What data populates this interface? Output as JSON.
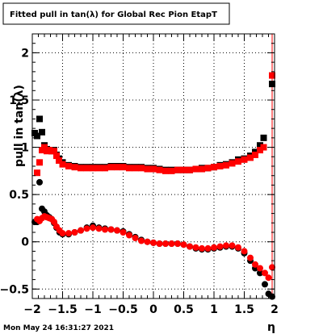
{
  "title": "Fitted pull in tan(λ) for Global Rec Pion EtapT",
  "timestamp": "Mon May 24 16:31:27 2021",
  "chart_data": {
    "type": "scatter",
    "title": "Fitted pull in tan(λ) for Global Rec Pion EtapT",
    "xlabel": "η",
    "ylabel": "pull in tan(λ)",
    "xlim": [
      -2,
      2
    ],
    "ylim": [
      -0.6,
      2.2
    ],
    "grid": true,
    "x_ticks": [
      -2,
      -1.5,
      -1,
      -0.5,
      0,
      0.5,
      1,
      1.5,
      2
    ],
    "x_tick_labels": [
      "−2",
      "−1.5",
      "−1",
      "−0.5",
      "0",
      "0.5",
      "1",
      "1.5",
      "2"
    ],
    "y_ticks": [
      -0.5,
      0,
      0.5,
      1,
      1.5,
      2
    ],
    "y_tick_labels": [
      "−0.5",
      "0",
      "0.5",
      "1",
      "1.5",
      "2"
    ],
    "colors": {
      "black": "#000000",
      "red": "#ff0000"
    },
    "series": [
      {
        "marker": "square",
        "color": "#000000",
        "points": [
          [
            -1.96,
            1.15
          ],
          [
            -1.92,
            1.12
          ],
          [
            -1.88,
            1.3
          ],
          [
            -1.84,
            1.16
          ],
          [
            -1.8,
            1.02
          ],
          [
            -1.76,
            0.98
          ],
          [
            -1.72,
            0.97
          ],
          [
            -1.68,
            0.96
          ],
          [
            -1.64,
            0.97
          ],
          [
            -1.6,
            0.92
          ],
          [
            -1.56,
            0.88
          ],
          [
            -1.5,
            0.84
          ],
          [
            -1.4,
            0.81
          ],
          [
            -1.3,
            0.8
          ],
          [
            -1.2,
            0.79
          ],
          [
            -1.1,
            0.79
          ],
          [
            -1.0,
            0.79
          ],
          [
            -0.9,
            0.79
          ],
          [
            -0.8,
            0.79
          ],
          [
            -0.7,
            0.8
          ],
          [
            -0.6,
            0.8
          ],
          [
            -0.5,
            0.8
          ],
          [
            -0.4,
            0.79
          ],
          [
            -0.3,
            0.79
          ],
          [
            -0.2,
            0.79
          ],
          [
            -0.1,
            0.78
          ],
          [
            0.0,
            0.78
          ],
          [
            0.1,
            0.77
          ],
          [
            0.2,
            0.76
          ],
          [
            0.3,
            0.76
          ],
          [
            0.4,
            0.76
          ],
          [
            0.5,
            0.76
          ],
          [
            0.6,
            0.76
          ],
          [
            0.7,
            0.77
          ],
          [
            0.8,
            0.78
          ],
          [
            0.9,
            0.78
          ],
          [
            1.0,
            0.79
          ],
          [
            1.1,
            0.81
          ],
          [
            1.2,
            0.82
          ],
          [
            1.3,
            0.84
          ],
          [
            1.4,
            0.87
          ],
          [
            1.5,
            0.88
          ],
          [
            1.6,
            0.91
          ],
          [
            1.68,
            0.95
          ],
          [
            1.76,
            1.02
          ],
          [
            1.82,
            1.1
          ],
          [
            1.96,
            1.67
          ]
        ]
      },
      {
        "marker": "square",
        "color": "#ff0000",
        "points": [
          [
            -1.92,
            0.73
          ],
          [
            -1.88,
            0.84
          ],
          [
            -1.84,
            0.97
          ],
          [
            -1.8,
            1.0
          ],
          [
            -1.76,
            0.96
          ],
          [
            -1.72,
            0.97
          ],
          [
            -1.68,
            0.96
          ],
          [
            -1.64,
            0.96
          ],
          [
            -1.6,
            0.91
          ],
          [
            -1.56,
            0.86
          ],
          [
            -1.5,
            0.82
          ],
          [
            -1.4,
            0.8
          ],
          [
            -1.3,
            0.79
          ],
          [
            -1.2,
            0.78
          ],
          [
            -1.1,
            0.78
          ],
          [
            -1.0,
            0.78
          ],
          [
            -0.9,
            0.78
          ],
          [
            -0.8,
            0.78
          ],
          [
            -0.7,
            0.79
          ],
          [
            -0.6,
            0.79
          ],
          [
            -0.5,
            0.79
          ],
          [
            -0.4,
            0.78
          ],
          [
            -0.3,
            0.78
          ],
          [
            -0.2,
            0.78
          ],
          [
            -0.1,
            0.77
          ],
          [
            0.0,
            0.77
          ],
          [
            0.1,
            0.76
          ],
          [
            0.2,
            0.75
          ],
          [
            0.3,
            0.75
          ],
          [
            0.4,
            0.76
          ],
          [
            0.5,
            0.76
          ],
          [
            0.6,
            0.76
          ],
          [
            0.7,
            0.77
          ],
          [
            0.8,
            0.77
          ],
          [
            0.9,
            0.78
          ],
          [
            1.0,
            0.79
          ],
          [
            1.1,
            0.8
          ],
          [
            1.2,
            0.81
          ],
          [
            1.3,
            0.83
          ],
          [
            1.4,
            0.85
          ],
          [
            1.5,
            0.87
          ],
          [
            1.6,
            0.89
          ],
          [
            1.68,
            0.92
          ],
          [
            1.76,
            0.97
          ],
          [
            1.82,
            1.0
          ],
          [
            1.96,
            1.76
          ]
        ]
      },
      {
        "marker": "circle",
        "color": "#000000",
        "points": [
          [
            -1.96,
            0.21
          ],
          [
            -1.92,
            0.21
          ],
          [
            -1.88,
            0.63
          ],
          [
            -1.84,
            0.35
          ],
          [
            -1.8,
            0.32
          ],
          [
            -1.76,
            0.28
          ],
          [
            -1.72,
            0.26
          ],
          [
            -1.68,
            0.24
          ],
          [
            -1.64,
            0.2
          ],
          [
            -1.6,
            0.15
          ],
          [
            -1.55,
            0.1
          ],
          [
            -1.5,
            0.08
          ],
          [
            -1.4,
            0.08
          ],
          [
            -1.3,
            0.1
          ],
          [
            -1.2,
            0.12
          ],
          [
            -1.1,
            0.15
          ],
          [
            -1.0,
            0.17
          ],
          [
            -0.9,
            0.15
          ],
          [
            -0.8,
            0.14
          ],
          [
            -0.7,
            0.13
          ],
          [
            -0.6,
            0.12
          ],
          [
            -0.5,
            0.11
          ],
          [
            -0.4,
            0.08
          ],
          [
            -0.3,
            0.05
          ],
          [
            -0.2,
            0.02
          ],
          [
            -0.1,
            0.0
          ],
          [
            0.0,
            -0.01
          ],
          [
            0.1,
            -0.02
          ],
          [
            0.2,
            -0.02
          ],
          [
            0.3,
            -0.02
          ],
          [
            0.4,
            -0.02
          ],
          [
            0.5,
            -0.03
          ],
          [
            0.6,
            -0.05
          ],
          [
            0.7,
            -0.07
          ],
          [
            0.8,
            -0.08
          ],
          [
            0.9,
            -0.08
          ],
          [
            1.0,
            -0.07
          ],
          [
            1.1,
            -0.06
          ],
          [
            1.2,
            -0.05
          ],
          [
            1.3,
            -0.05
          ],
          [
            1.4,
            -0.07
          ],
          [
            1.5,
            -0.12
          ],
          [
            1.6,
            -0.2
          ],
          [
            1.68,
            -0.28
          ],
          [
            1.76,
            -0.33
          ],
          [
            1.84,
            -0.45
          ],
          [
            1.9,
            -0.55
          ],
          [
            1.96,
            -0.58
          ]
        ]
      },
      {
        "marker": "circle",
        "color": "#ff0000",
        "points": [
          [
            -1.92,
            0.24
          ],
          [
            -1.88,
            0.22
          ],
          [
            -1.84,
            0.25
          ],
          [
            -1.8,
            0.27
          ],
          [
            -1.76,
            0.26
          ],
          [
            -1.72,
            0.25
          ],
          [
            -1.68,
            0.24
          ],
          [
            -1.64,
            0.21
          ],
          [
            -1.6,
            0.16
          ],
          [
            -1.55,
            0.12
          ],
          [
            -1.5,
            0.09
          ],
          [
            -1.4,
            0.09
          ],
          [
            -1.3,
            0.1
          ],
          [
            -1.2,
            0.12
          ],
          [
            -1.1,
            0.14
          ],
          [
            -1.0,
            0.15
          ],
          [
            -0.9,
            0.14
          ],
          [
            -0.8,
            0.13
          ],
          [
            -0.7,
            0.13
          ],
          [
            -0.6,
            0.12
          ],
          [
            -0.5,
            0.1
          ],
          [
            -0.4,
            0.07
          ],
          [
            -0.3,
            0.04
          ],
          [
            -0.2,
            0.01
          ],
          [
            -0.1,
            0.0
          ],
          [
            0.0,
            -0.01
          ],
          [
            0.1,
            -0.02
          ],
          [
            0.2,
            -0.02
          ],
          [
            0.3,
            -0.02
          ],
          [
            0.4,
            -0.02
          ],
          [
            0.5,
            -0.03
          ],
          [
            0.6,
            -0.05
          ],
          [
            0.7,
            -0.06
          ],
          [
            0.8,
            -0.07
          ],
          [
            0.9,
            -0.07
          ],
          [
            1.0,
            -0.06
          ],
          [
            1.1,
            -0.05
          ],
          [
            1.2,
            -0.04
          ],
          [
            1.3,
            -0.04
          ],
          [
            1.4,
            -0.06
          ],
          [
            1.5,
            -0.1
          ],
          [
            1.6,
            -0.17
          ],
          [
            1.68,
            -0.24
          ],
          [
            1.76,
            -0.28
          ],
          [
            1.84,
            -0.33
          ],
          [
            1.9,
            -0.38
          ],
          [
            1.96,
            -0.27
          ]
        ]
      }
    ],
    "error_bars": [
      {
        "color": "#ff0000",
        "x": 1.96,
        "y_low": -0.7,
        "y_high": 2.2
      }
    ]
  }
}
